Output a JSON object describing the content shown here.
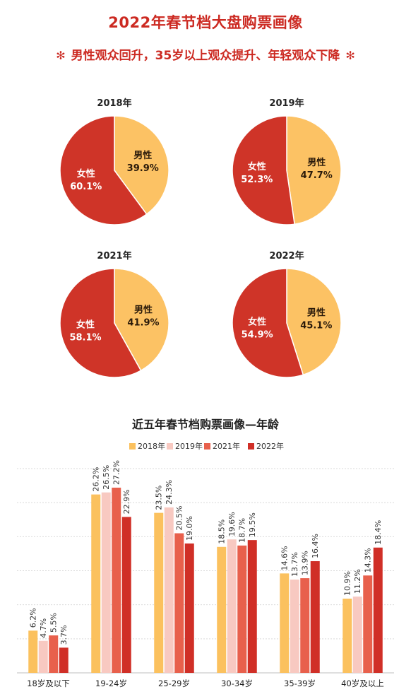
{
  "header": {
    "title": "2022年春节档大盘购票画像",
    "subtitle": "男性观众回升，35岁以上观众提升、年轻观众下降",
    "deco_icon": "snowflake-icon"
  },
  "colors": {
    "title_red": "#cc2a22",
    "male": "#fcc264",
    "female": "#cf3428",
    "s2018": "#fbc15e",
    "s2019": "#f8c9c1",
    "s2021": "#e8604c",
    "s2022": "#d02f27"
  },
  "chart_data": [
    {
      "type": "pie",
      "title": "2018年",
      "slices": [
        {
          "label": "男性",
          "value": 39.9,
          "display": "39.9%"
        },
        {
          "label": "女性",
          "value": 60.1,
          "display": "60.1%"
        }
      ]
    },
    {
      "type": "pie",
      "title": "2019年",
      "slices": [
        {
          "label": "男性",
          "value": 47.7,
          "display": "47.7%"
        },
        {
          "label": "女性",
          "value": 52.3,
          "display": "52.3%"
        }
      ]
    },
    {
      "type": "pie",
      "title": "2021年",
      "slices": [
        {
          "label": "男性",
          "value": 41.9,
          "display": "41.9%"
        },
        {
          "label": "女性",
          "value": 58.1,
          "display": "58.1%"
        }
      ]
    },
    {
      "type": "pie",
      "title": "2022年",
      "slices": [
        {
          "label": "男性",
          "value": 45.1,
          "display": "45.1%"
        },
        {
          "label": "女性",
          "value": 54.9,
          "display": "54.9%"
        }
      ]
    },
    {
      "type": "bar",
      "title": "近五年春节档购票画像—年龄",
      "categories": [
        "18岁及以下",
        "19-24岁",
        "25-29岁",
        "30-34岁",
        "35-39岁",
        "40岁及以上"
      ],
      "series": [
        {
          "name": "2018年",
          "values": [
            6.2,
            26.2,
            23.5,
            18.5,
            14.6,
            10.9
          ]
        },
        {
          "name": "2019年",
          "values": [
            4.7,
            26.5,
            24.3,
            19.6,
            13.7,
            11.2
          ]
        },
        {
          "name": "2021年",
          "values": [
            5.5,
            27.2,
            20.5,
            18.7,
            13.9,
            14.3
          ]
        },
        {
          "name": "2022年",
          "values": [
            3.7,
            22.9,
            19.0,
            19.5,
            16.4,
            18.4
          ]
        }
      ],
      "ylim": [
        0,
        30
      ],
      "grid": true,
      "legend": "top-center"
    }
  ]
}
